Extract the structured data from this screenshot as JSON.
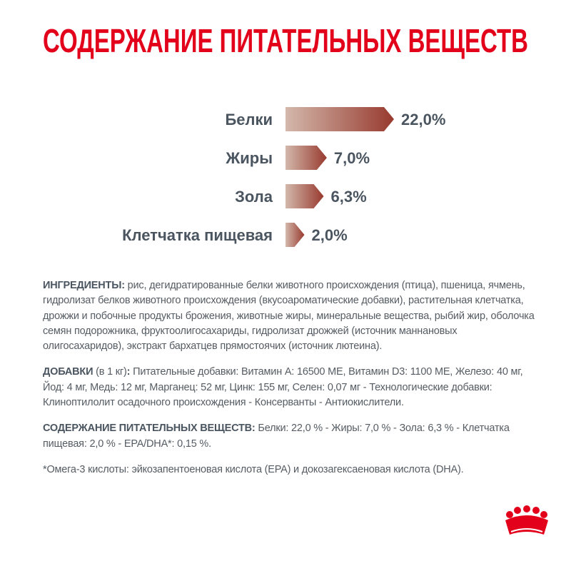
{
  "chart_data": {
    "type": "bar",
    "orientation": "horizontal",
    "title": "СОДЕРЖАНИЕ ПИТАТЕЛЬНЫХ ВЕЩЕСТВ",
    "categories": [
      "Белки",
      "Жиры",
      "Зола",
      "Клетчатка пищевая"
    ],
    "values": [
      22.0,
      7.0,
      6.3,
      2.0
    ],
    "value_labels": [
      "22,0%",
      "7,0%",
      "6,3%",
      "2,0%"
    ],
    "colors": [
      "#d3b8ab",
      "#983a2f"
    ]
  },
  "text": {
    "paragraphs": [
      [
        {
          "text": "ИНГРЕДИЕНТЫ:",
          "bold": true
        },
        {
          "text": " рис, дегидратированные белки животного происхождения (птица), пшеница, ячмень, гидролизат белков животного происхождения (вкусоароматические добавки), растительная клетчатка, дрожжи и побочные продукты брожения, животные жиры, минеральные вещества, рыбий жир, оболочка семян подорожника, фруктоолигосахариды, гидролизат дрожжей (источник маннановых олигосахаридов), экстракт бархатцев прямостоячих (источник лютеина)."
        }
      ],
      [
        {
          "text": "ДОБАВКИ",
          "bold": true
        },
        {
          "text": " (в 1 кг)"
        },
        {
          "text": ":",
          "bold": true
        },
        {
          "text": " Питательные добавки: Витамин А: 16500 МЕ, Витамин D3: 1100 МЕ, Железо: 40 мг, Йод: 4 мг, Медь: 12 мг, Марганец: 52 мг, Цинк: 155 мг, Селен: 0,07 мг - Технологические добавки: Клиноптилолит осадочного происхождения - Консерванты - Антиокислители."
        }
      ],
      [
        {
          "text": "СОДЕРЖАНИЕ ПИТАТЕЛЬНЫХ ВЕЩЕСТВ:",
          "bold": true
        },
        {
          "text": " Белки: 22,0 % - Жиры: 7,0 % - Зола: 6,3 % - Клетчатка пищевая: 2,0 % - EPA/DHA*: 0,15 %."
        }
      ],
      [
        {
          "text": "*Омега-3 кислоты: эйкозапентоеновая кислота (EPA) и докозагексаеновая кислота (DHA)."
        }
      ]
    ]
  }
}
